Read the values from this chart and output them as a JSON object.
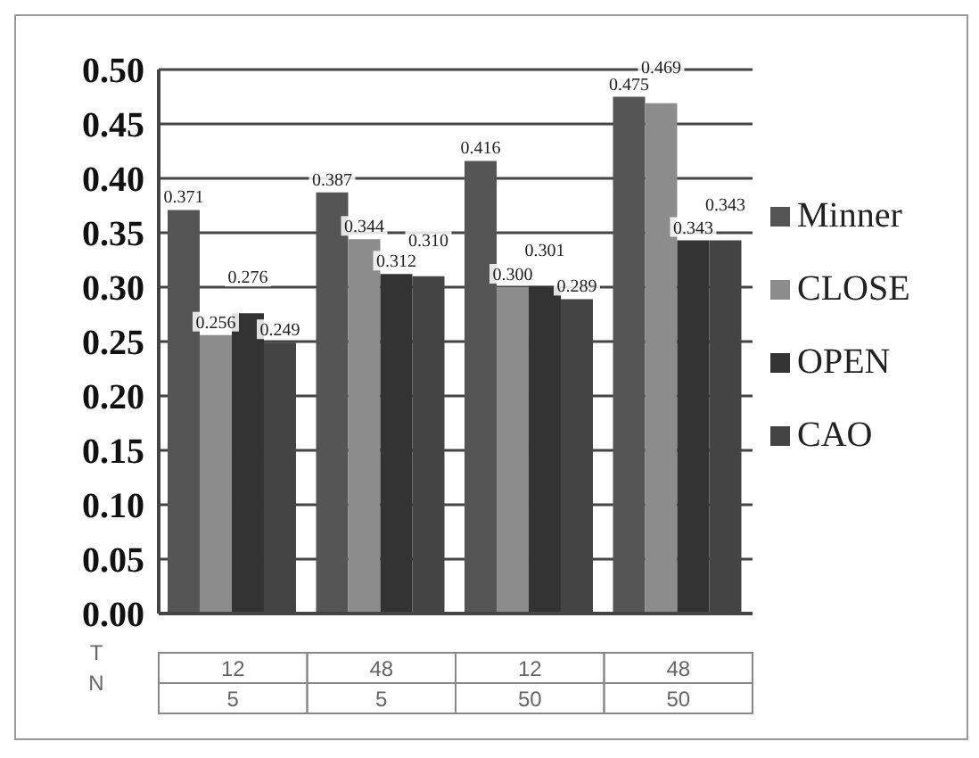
{
  "chart_data": {
    "type": "bar",
    "categories": [
      "12\n5",
      "48\n5",
      "12\n50",
      "48\n50"
    ],
    "series": [
      {
        "name": "Minner",
        "color": "#555555",
        "values": [
          0.371,
          0.387,
          0.416,
          0.475
        ],
        "value_labels": [
          "0.371",
          "0.387",
          "0.416",
          "0.475"
        ]
      },
      {
        "name": "CLOSE",
        "color": "#8c8c8c",
        "values": [
          0.256,
          0.344,
          0.3,
          0.469
        ],
        "value_labels": [
          "0.256",
          "0.344",
          "0.300",
          "0.469"
        ]
      },
      {
        "name": "OPEN",
        "color": "#333333",
        "values": [
          0.276,
          0.312,
          0.301,
          0.343
        ],
        "value_labels": [
          "0.276",
          "0.312",
          "0.301",
          "0.343"
        ]
      },
      {
        "name": "CAO",
        "color": "#444444",
        "values": [
          0.249,
          0.31,
          0.289,
          0.343
        ],
        "value_labels": [
          "0.249",
          "0.310",
          "0.289",
          "0.343"
        ]
      }
    ],
    "ylim": [
      0,
      0.5
    ],
    "yticks": [
      {
        "value": 0,
        "label": "0.00"
      },
      {
        "value": 0.05,
        "label": "0.05"
      },
      {
        "value": 0.1,
        "label": "0.10"
      },
      {
        "value": 0.15,
        "label": "0.15"
      },
      {
        "value": 0.2,
        "label": "0.20"
      },
      {
        "value": 0.25,
        "label": "0.25"
      },
      {
        "value": 0.3,
        "label": "0.30"
      },
      {
        "value": 0.35,
        "label": "0.35"
      },
      {
        "value": 0.4,
        "label": "0.40"
      },
      {
        "value": 0.45,
        "label": "0.45"
      },
      {
        "value": 0.5,
        "label": "0.50"
      }
    ],
    "grid": "y",
    "legend": "right",
    "annotations": [
      "T",
      "N"
    ]
  }
}
